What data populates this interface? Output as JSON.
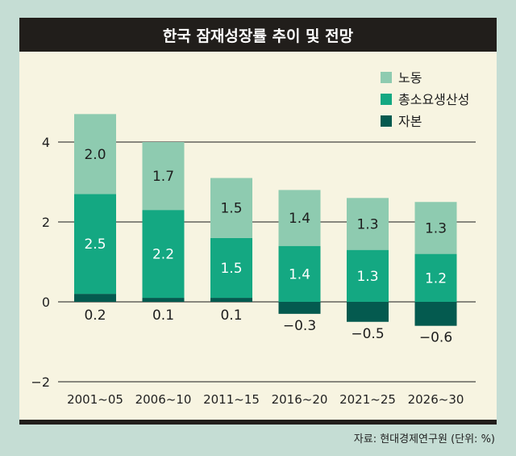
{
  "title": "한국 잠재성장률 추이 및 전망",
  "source": "자료: 현대경제연구원 (단위: %)",
  "colors": {
    "panel": "#f7f4e1",
    "labor": "#8ecbb0",
    "tfp": "#14a882",
    "capital": "#045a4f"
  },
  "chart_data": {
    "type": "bar",
    "stacked": true,
    "categories": [
      "2001~05",
      "2006~10",
      "2011~15",
      "2016~20",
      "2021~25",
      "2026~30"
    ],
    "series": [
      {
        "name": "자본",
        "values": [
          0.2,
          0.1,
          0.1,
          -0.3,
          -0.5,
          -0.6
        ],
        "color": "#045a4f"
      },
      {
        "name": "총소요생산성",
        "values": [
          2.5,
          2.2,
          1.5,
          1.4,
          1.3,
          1.2
        ],
        "color": "#14a882"
      },
      {
        "name": "노동",
        "values": [
          2.0,
          1.7,
          1.5,
          1.4,
          1.3,
          1.3
        ],
        "color": "#8ecbb0"
      }
    ],
    "value_labels": {
      "자본": [
        "0.2",
        "0.1",
        "0.1",
        "−0.3",
        "−0.5",
        "−0.6"
      ],
      "총소요생산성": [
        "2.5",
        "2.2",
        "1.5",
        "1.4",
        "1.3",
        "1.2"
      ],
      "노동": [
        "2.0",
        "1.7",
        "1.5",
        "1.4",
        "1.3",
        "1.3"
      ]
    },
    "legend": [
      "노동",
      "총소요생산성",
      "자본"
    ],
    "legend_position": "top-right",
    "yticks": [
      "4",
      "2",
      "0",
      "−2"
    ],
    "ytick_values": [
      4,
      2,
      0,
      -2
    ],
    "ylim": [
      -2,
      4
    ],
    "grid": true
  }
}
